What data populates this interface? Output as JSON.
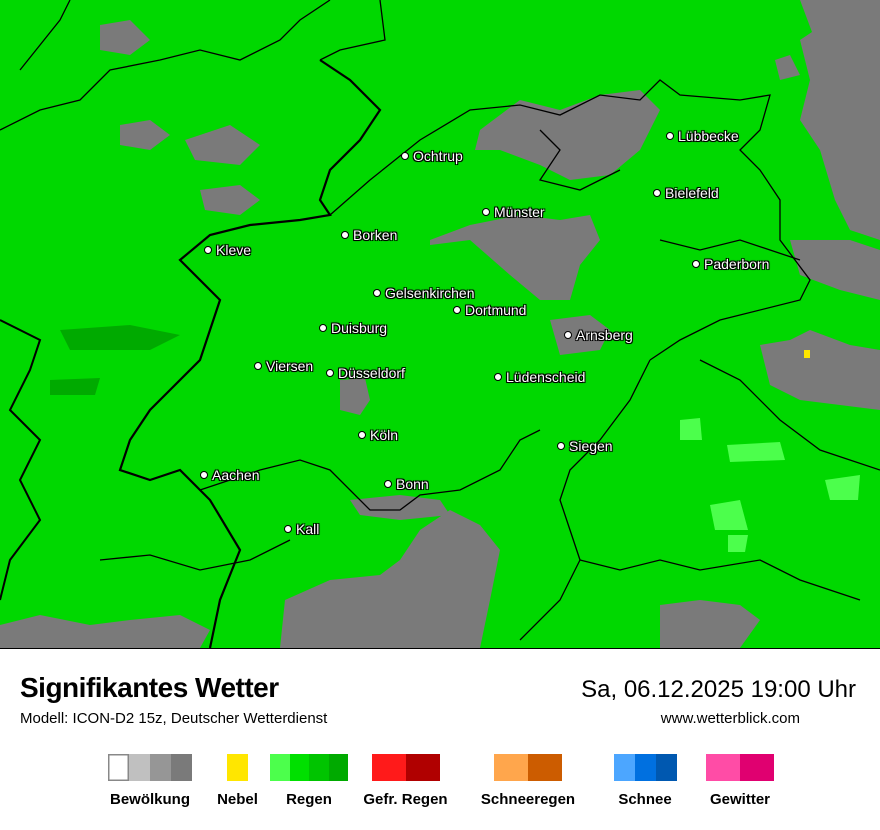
{
  "map": {
    "cities": [
      {
        "name": "Ochtrup"
      },
      {
        "name": "Lübbecke"
      },
      {
        "name": "Bielefeld"
      },
      {
        "name": "Münster"
      },
      {
        "name": "Borken"
      },
      {
        "name": "Kleve"
      },
      {
        "name": "Paderborn"
      },
      {
        "name": "Gelsenkirchen"
      },
      {
        "name": "Dortmund"
      },
      {
        "name": "Duisburg"
      },
      {
        "name": "Arnsberg"
      },
      {
        "name": "Viersen"
      },
      {
        "name": "Düsseldorf"
      },
      {
        "name": "Lüdenscheid"
      },
      {
        "name": "Köln"
      },
      {
        "name": "Siegen"
      },
      {
        "name": "Aachen"
      },
      {
        "name": "Bonn"
      },
      {
        "name": "Kall"
      }
    ],
    "colors": {
      "rain": "#00d800",
      "cloud": "#7a7a7a",
      "border": "#000000"
    }
  },
  "header": {
    "title": "Signifikantes Wetter",
    "model": "Modell: ICON-D2 15z, Deutscher Wetterdienst",
    "datetime": "Sa, 06.12.2025 19:00 Uhr",
    "website": "www.wetterblick.com"
  },
  "legend": [
    {
      "label": "Bewölkung",
      "colors": [
        "#ffffff",
        "#c0c0c0",
        "#969696",
        "#7a7a7a"
      ]
    },
    {
      "label": "Nebel",
      "colors": [
        "#ffe600"
      ]
    },
    {
      "label": "Regen",
      "colors": [
        "#4cff4c",
        "#00e000",
        "#00c400",
        "#00aa00"
      ]
    },
    {
      "label": "Gefr. Regen",
      "colors": [
        "#ff1a1a",
        "#b00000"
      ]
    },
    {
      "label": "Schneeregen",
      "colors": [
        "#ffa64c",
        "#cc5c00"
      ]
    },
    {
      "label": "Schnee",
      "colors": [
        "#4ca6ff",
        "#0070e0",
        "#0058b0"
      ]
    },
    {
      "label": "Gewitter",
      "colors": [
        "#ff4ca6",
        "#e00070"
      ]
    }
  ]
}
